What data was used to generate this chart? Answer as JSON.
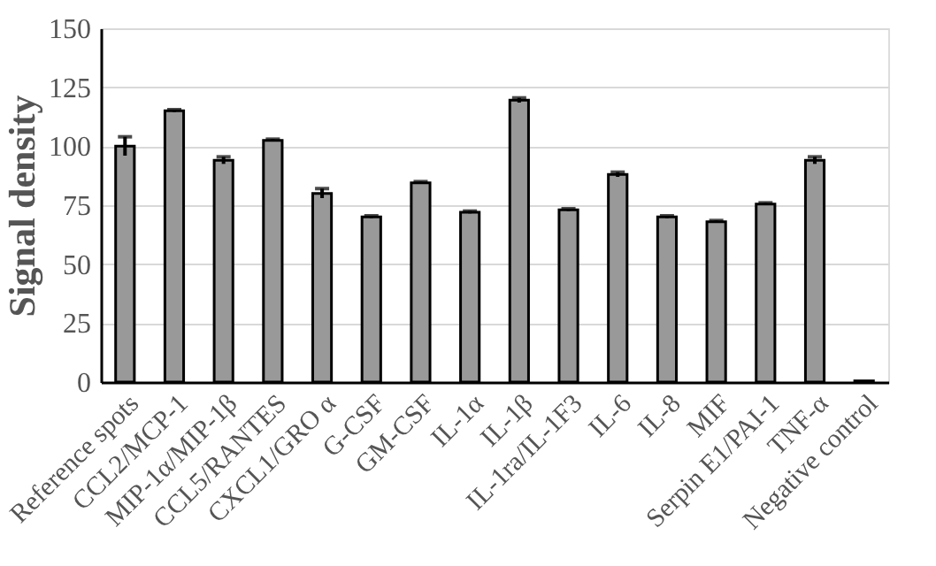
{
  "chart_data": {
    "type": "bar",
    "ylabel": "Signal density",
    "categories": [
      "Reference spots",
      "CCL2/MCP-1",
      "MIP-1α/MIP-1β",
      "CCL5/RANTES",
      "CXCL1/GRO α",
      "G-CSF",
      "GM-CSF",
      "IL-1α",
      "IL-1β",
      "IL-1ra/IL-1F3",
      "IL-6",
      "IL-8",
      "MIF",
      "Serpin E1/PAI-1",
      "TNF-α",
      "Negative control"
    ],
    "values": [
      100,
      115,
      94,
      102.5,
      80,
      70,
      84.5,
      72,
      119.5,
      73,
      88,
      70,
      68,
      75.5,
      94,
      0.5
    ],
    "errors": [
      4,
      0.5,
      1.5,
      0.5,
      2,
      0.5,
      0.5,
      0.5,
      1,
      0.5,
      1,
      0.5,
      0.5,
      0.5,
      1.5,
      null
    ],
    "color": "#999999",
    "ylim": [
      0,
      150
    ],
    "yticks": [
      0,
      25,
      50,
      75,
      100,
      125,
      150
    ],
    "grid": "y"
  }
}
